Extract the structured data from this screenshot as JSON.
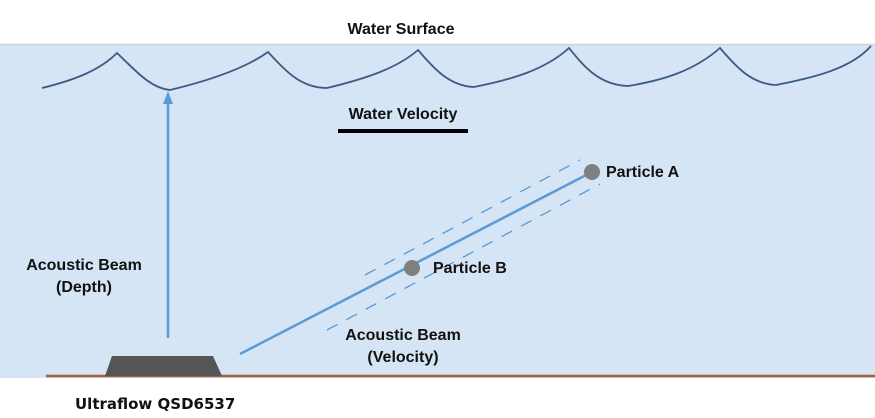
{
  "labels": {
    "water_surface": "Water Surface",
    "water_velocity": "Water Velocity",
    "particle_a": "Particle A",
    "particle_b": "Particle B",
    "depth_beam_line1": "Acoustic Beam",
    "depth_beam_line2": "(Depth)",
    "velocity_beam_line1": "Acoustic Beam",
    "velocity_beam_line2": "(Velocity)",
    "device": "Ultraflow QSD6537"
  },
  "colors": {
    "water": "#d6e5f5",
    "wave": "#3d5a85",
    "beam": "#5b9bd5",
    "ground": "#a0623a",
    "device": "#555555",
    "particle": "#808080"
  }
}
